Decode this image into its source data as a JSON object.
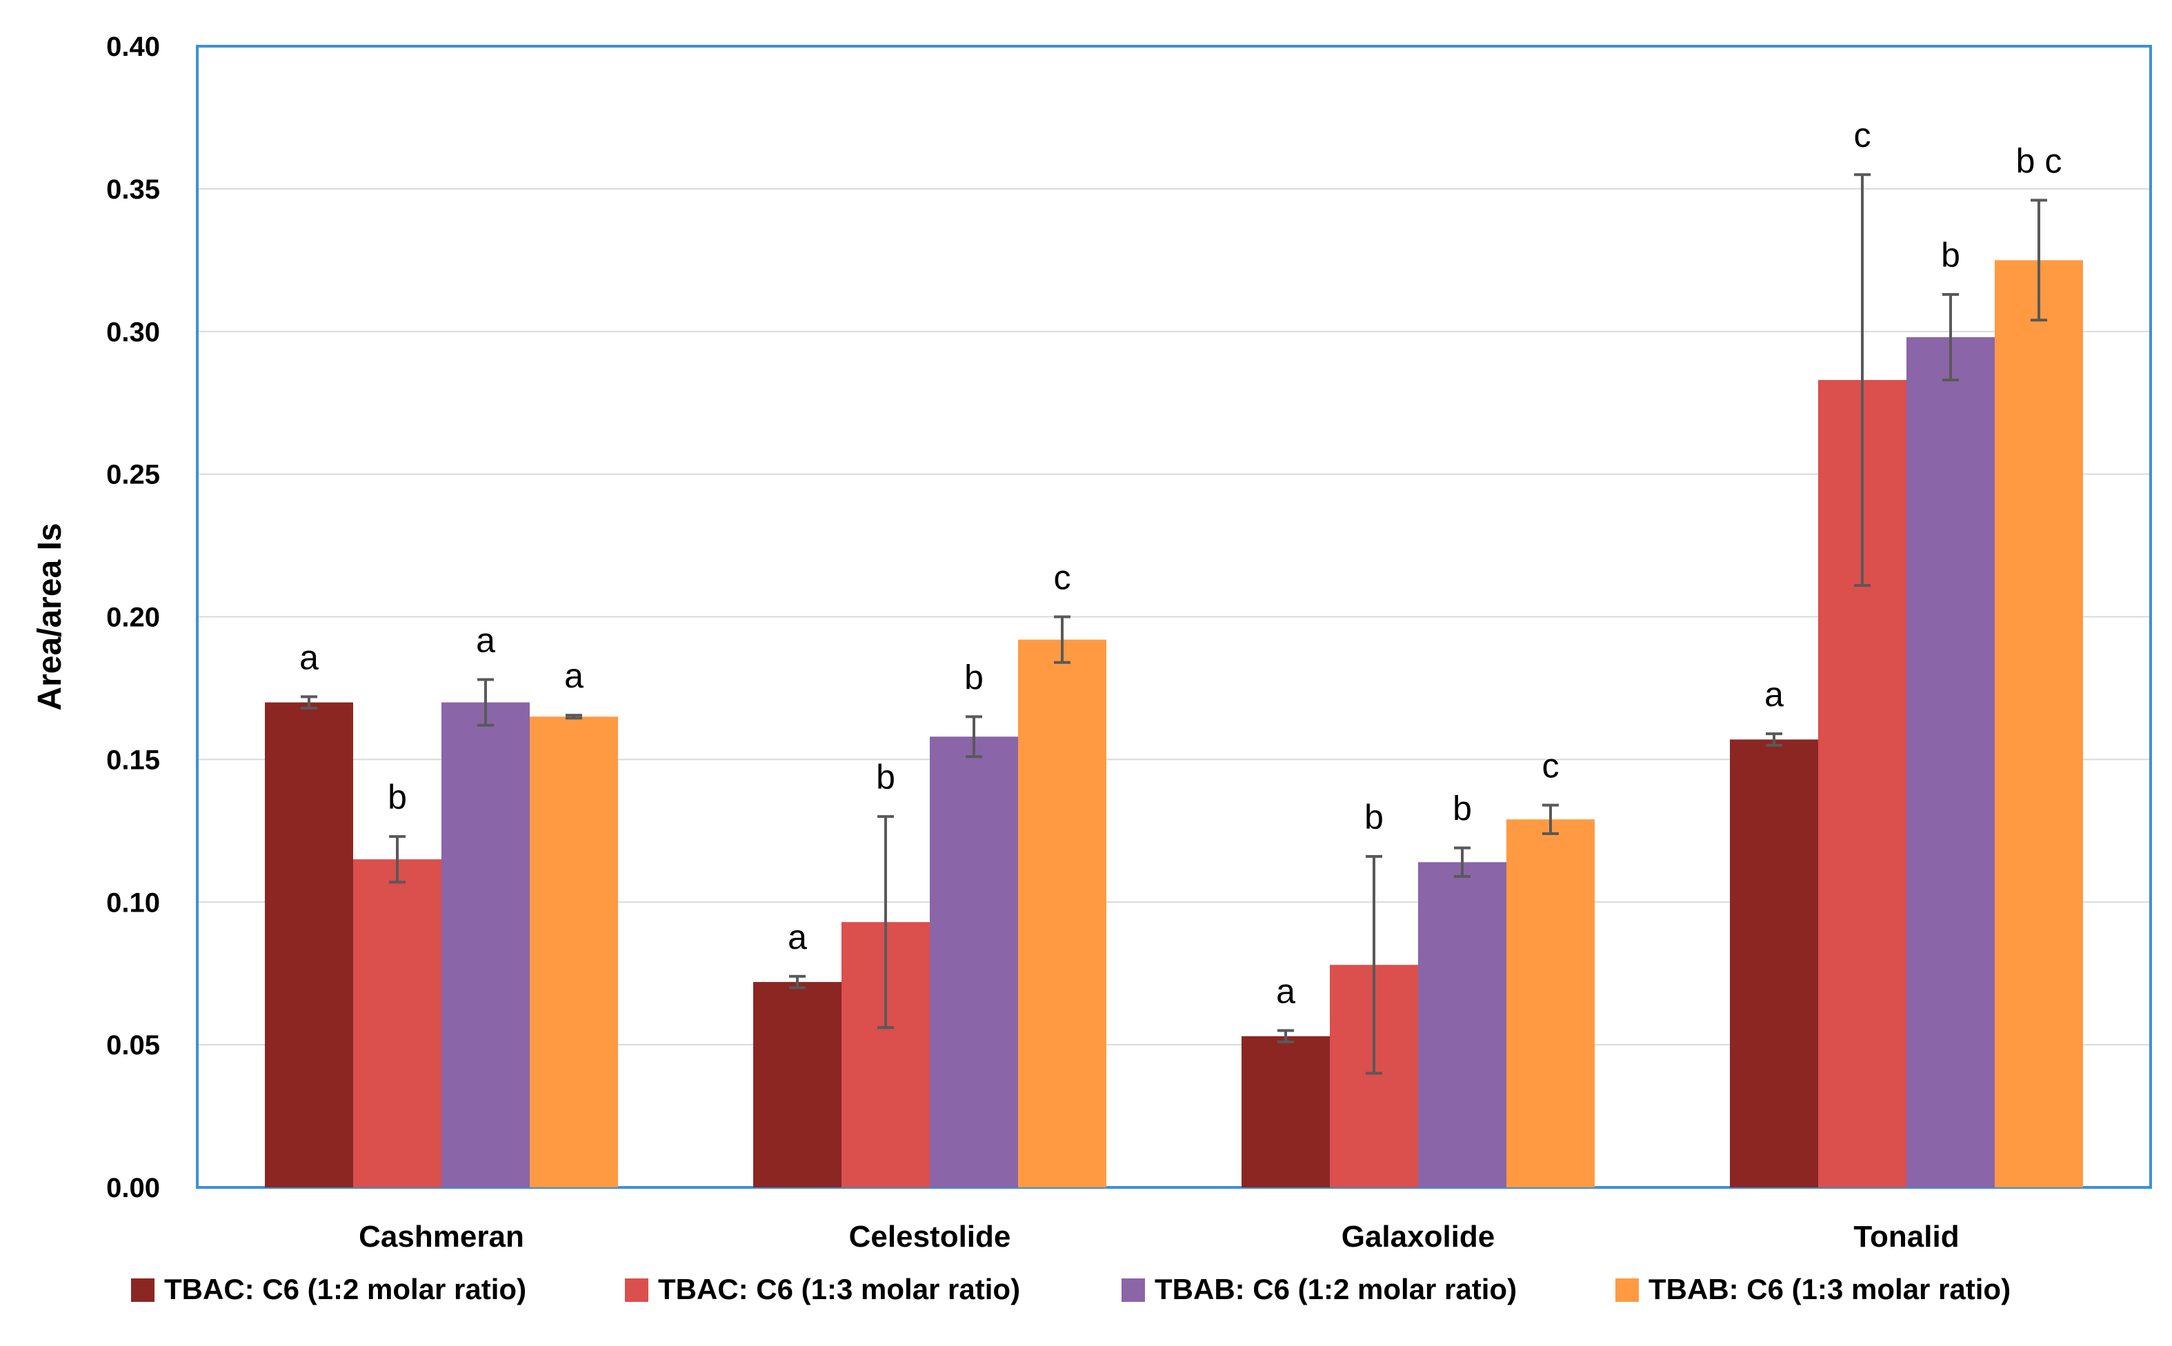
{
  "chart_data": {
    "type": "bar",
    "title": "",
    "xlabel": "",
    "ylabel": "Area/area Is",
    "ylim": [
      0,
      0.4
    ],
    "yticks": [
      "0.00",
      "0.05",
      "0.10",
      "0.15",
      "0.20",
      "0.25",
      "0.30",
      "0.35",
      "0.40"
    ],
    "ytick_values": [
      0,
      0.05,
      0.1,
      0.15,
      0.2,
      0.25,
      0.3,
      0.35,
      0.4
    ],
    "grid": true,
    "legend_position": "bottom",
    "categories": [
      "Cashmeran",
      "Celestolide",
      "Galaxolide",
      "Tonalid"
    ],
    "series": [
      {
        "name": "TBAC: C6 (1:2 molar ratio)",
        "color": "#8B2623",
        "values": [
          0.17,
          0.072,
          0.053,
          0.157
        ],
        "errors": [
          0.002,
          0.002,
          0.002,
          0.002
        ],
        "letters": [
          "a",
          "a",
          "a",
          "a"
        ]
      },
      {
        "name": "TBAC: C6 (1:3 molar ratio)",
        "color": "#DB4F4D",
        "values": [
          0.115,
          0.093,
          0.078,
          0.283
        ],
        "errors": [
          0.008,
          0.037,
          0.038,
          0.072
        ],
        "letters": [
          "b",
          "b",
          "b",
          "c"
        ]
      },
      {
        "name": "TBAB: C6 (1:2 molar ratio)",
        "color": "#8A65A8",
        "values": [
          0.17,
          0.158,
          0.114,
          0.298
        ],
        "errors": [
          0.008,
          0.007,
          0.005,
          0.015
        ],
        "letters": [
          "a",
          "b",
          "b",
          "b"
        ]
      },
      {
        "name": "TBAB: C6 (1:3 molar ratio)",
        "color": "#FF9A42",
        "values": [
          0.165,
          0.192,
          0.129,
          0.325
        ],
        "errors": [
          0.0005,
          0.008,
          0.005,
          0.021
        ],
        "letters": [
          "a",
          "c",
          "c",
          "b c"
        ]
      }
    ]
  }
}
